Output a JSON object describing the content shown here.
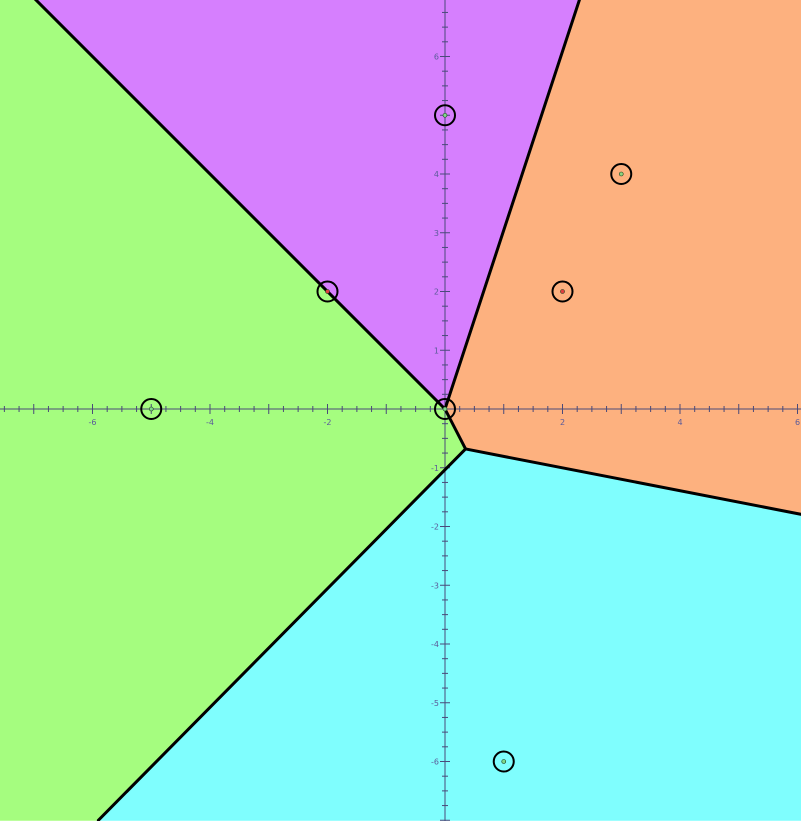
{
  "diagram": {
    "type": "voronoi",
    "coordinate_system": {
      "x_range": [
        -7.6,
        6.1
      ],
      "y_range": [
        -7.0,
        7.0
      ],
      "major_tick_step": 1,
      "minor_tick_step": 0.25,
      "x_tick_labels": [
        {
          "value": -6,
          "text": "-6"
        },
        {
          "value": -4,
          "text": "-4"
        },
        {
          "value": -2,
          "text": "-2"
        },
        {
          "value": 2,
          "text": "2"
        },
        {
          "value": 4,
          "text": "4"
        },
        {
          "value": 6,
          "text": "6"
        }
      ],
      "y_tick_labels": [
        {
          "value": 6,
          "text": "6"
        },
        {
          "value": 4,
          "text": "4"
        },
        {
          "value": 3,
          "text": "3"
        },
        {
          "value": 2,
          "text": "2"
        },
        {
          "value": 1,
          "text": "1"
        },
        {
          "value": -1,
          "text": "-1"
        },
        {
          "value": -2,
          "text": "-2"
        },
        {
          "value": -3,
          "text": "-3"
        },
        {
          "value": -4,
          "text": "-4"
        },
        {
          "value": -5,
          "text": "-5"
        },
        {
          "value": -6,
          "text": "-6"
        }
      ]
    },
    "regions": [
      {
        "id": "purple",
        "color": "#d67ffe",
        "polygon": [
          [
            -7.6,
            7.0
          ],
          [
            2.3,
            7.0
          ],
          [
            0.0,
            0.0
          ],
          [
            -7.6,
            7.6
          ]
        ]
      },
      {
        "id": "orange",
        "color": "#fdb17f",
        "polygon": [
          [
            2.3,
            7.0
          ],
          [
            6.1,
            7.0
          ],
          [
            6.1,
            -1.8
          ],
          [
            0.35,
            -0.68
          ],
          [
            0.0,
            0.0
          ]
        ]
      },
      {
        "id": "green",
        "color": "#a5fd7f",
        "polygon": [
          [
            -7.6,
            7.6
          ],
          [
            0.0,
            0.0
          ],
          [
            0.35,
            -0.68
          ],
          [
            -5.9,
            -7.0
          ],
          [
            -7.6,
            -7.0
          ]
        ]
      },
      {
        "id": "cyan",
        "color": "#7ffefe",
        "polygon": [
          [
            0.35,
            -0.68
          ],
          [
            6.1,
            -1.8
          ],
          [
            6.1,
            -7.0
          ],
          [
            -5.9,
            -7.0
          ]
        ]
      }
    ],
    "boundaries": [
      {
        "id": "purple-green",
        "from": [
          -7.6,
          7.6
        ],
        "to": [
          0.0,
          0.0
        ]
      },
      {
        "id": "purple-orange",
        "from": [
          2.3,
          7.0
        ],
        "to": [
          0.0,
          0.0
        ]
      },
      {
        "id": "center-short",
        "from": [
          0.0,
          0.0
        ],
        "to": [
          0.35,
          -0.68
        ]
      },
      {
        "id": "orange-cyan",
        "from": [
          0.35,
          -0.68
        ],
        "to": [
          6.1,
          -1.8
        ]
      },
      {
        "id": "green-cyan",
        "from": [
          0.35,
          -0.68
        ],
        "to": [
          -5.9,
          -7.0
        ]
      }
    ],
    "sites": [
      {
        "x": 0,
        "y": 5,
        "dot_color": "#7fd88a"
      },
      {
        "x": 3,
        "y": 4,
        "dot_color": "#8fd47f"
      },
      {
        "x": 2,
        "y": 2,
        "dot_color": "#e04040"
      },
      {
        "x": -2,
        "y": 2,
        "dot_color": "#e04040"
      },
      {
        "x": 0,
        "y": 0,
        "dot_color": "#7fd88a"
      },
      {
        "x": -5,
        "y": 0,
        "dot_color": "#7fd88a"
      },
      {
        "x": 1,
        "y": -6,
        "dot_color": "#7fd88a"
      }
    ],
    "styles": {
      "background": "#ffffff",
      "axis_color": "#4a4a7a",
      "label_color": "#5b5b9a",
      "boundary_color": "#000000",
      "ring_color": "#000000"
    }
  }
}
